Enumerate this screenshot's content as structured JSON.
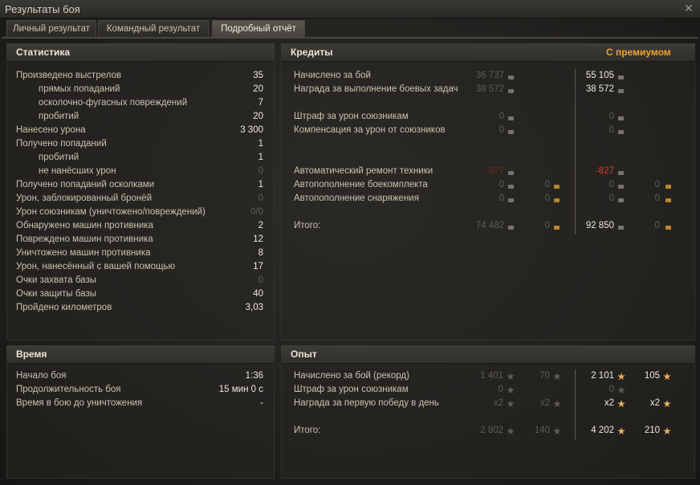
{
  "window": {
    "title": "Результаты боя"
  },
  "tabs": [
    "Личный результат",
    "Командный результат",
    "Подробный отчёт"
  ],
  "active_tab": 2,
  "statistics": {
    "title": "Статистика",
    "rows": [
      {
        "label": "Произведено выстрелов",
        "value": "35"
      },
      {
        "label": "прямых попаданий",
        "value": "20",
        "indent": true
      },
      {
        "label": "осколочно-фугасных повреждений",
        "value": "7",
        "indent": true
      },
      {
        "label": "пробитий",
        "value": "20",
        "indent": true
      },
      {
        "label": "Нанесено урона",
        "value": "3 300"
      },
      {
        "label": "Получено попаданий",
        "value": "1"
      },
      {
        "label": "пробитий",
        "value": "1",
        "indent": true
      },
      {
        "label": "не нанёсших урон",
        "value": "0",
        "indent": true,
        "dim": true
      },
      {
        "label": "Получено попаданий осколками",
        "value": "1"
      },
      {
        "label": "Урон, заблокированный бронёй",
        "value": "0",
        "dim": true
      },
      {
        "label": "Урон союзникам (уничтожено/повреждений)",
        "value": "0/0",
        "dim": true
      },
      {
        "label": "Обнаружено машин противника",
        "value": "2"
      },
      {
        "label": "Повреждено машин противника",
        "value": "12"
      },
      {
        "label": "Уничтожено машин противника",
        "value": "8"
      },
      {
        "label": "Урон, нанесённый с вашей помощью",
        "value": "17"
      },
      {
        "label": "Очки захвата базы",
        "value": "0",
        "dim": true
      },
      {
        "label": "Очки защиты базы",
        "value": "40"
      },
      {
        "label": "Пройдено километров",
        "value": "3,03"
      }
    ]
  },
  "time": {
    "title": "Время",
    "rows": [
      {
        "label": "Начало боя",
        "value": "1:36"
      },
      {
        "label": "Продолжительность боя",
        "value": "15 мин 0 с"
      },
      {
        "label": "Время в бою до уничтожения",
        "value": "-"
      }
    ]
  },
  "credits": {
    "title": "Кредиты",
    "premium_header": "С премиумом",
    "rows": [
      {
        "label": "Начислено за бой",
        "base": "36 737",
        "base_tone": "dim",
        "premium": "55 105",
        "premium_tone": "bright"
      },
      {
        "label": "Награда за выполнение боевых задач",
        "base": "38 572",
        "base_tone": "dim",
        "premium": "38 572",
        "premium_tone": "bright"
      },
      {
        "label": "Штраф за урон союзникам",
        "base": "0",
        "base_tone": "dim",
        "premium": "0",
        "premium_tone": "dim"
      },
      {
        "label": "Компенсация за урон от союзников",
        "base": "0",
        "base_tone": "dim",
        "premium": "0",
        "premium_tone": "dim"
      },
      {
        "label": "Автоматический ремонт техники",
        "base": "-827",
        "base_tone": "darkred",
        "premium": "-827",
        "premium_tone": "red"
      },
      {
        "label": "Автопополнение боекомплекта",
        "base": "0",
        "base_tone": "dim",
        "base_gold": "0",
        "premium": "0",
        "premium_tone": "dim",
        "premium_gold": "0"
      },
      {
        "label": "Автопополнение снаряжения",
        "base": "0",
        "base_tone": "dim",
        "base_gold": "0",
        "premium": "0",
        "premium_tone": "dim",
        "premium_gold": "0"
      },
      {
        "label": "Итого:",
        "base": "74 482",
        "base_tone": "dim",
        "base_gold": "0",
        "premium": "92 850",
        "premium_tone": "bright",
        "premium_gold": "0"
      }
    ]
  },
  "experience": {
    "title": "Опыт",
    "rows": [
      {
        "label": "Начислено за бой (рекорд)",
        "base": "1 401",
        "base_free": "70",
        "premium": "2 101",
        "premium_free": "105",
        "premium_tone": "bright"
      },
      {
        "label": "Штраф за урон союзникам",
        "base": "0",
        "premium": "0",
        "premium_tone": "dim"
      },
      {
        "label": "Награда за первую победу в день",
        "base": "x2",
        "base_free": "x2",
        "premium": "x2",
        "premium_free": "x2",
        "premium_tone": "bright"
      },
      {
        "label": "Итого:",
        "base": "2 802",
        "base_free": "140",
        "premium": "4 202",
        "premium_free": "210",
        "premium_tone": "bright"
      }
    ]
  }
}
